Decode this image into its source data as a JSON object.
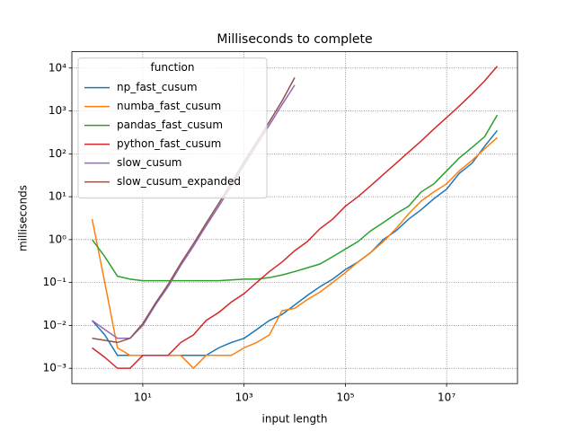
{
  "chart_data": {
    "type": "line",
    "title": "Milliseconds to complete",
    "xlabel": "input length",
    "ylabel": "milliseconds",
    "legend_title": "function",
    "legend": "upper left",
    "grid": true,
    "xscale": "log",
    "yscale": "log",
    "x": [
      1,
      1.778,
      3.162,
      5.623,
      10,
      17.78,
      31.62,
      56.23,
      100,
      177.8,
      316.2,
      562.3,
      1000,
      1778,
      3162,
      5623,
      10000,
      17780,
      31620,
      56230,
      100000,
      177800,
      316200,
      562300,
      1000000,
      1778000,
      3162000,
      5623000,
      10000000,
      17780000,
      31620000,
      56230000,
      100000000
    ],
    "series": [
      {
        "name": "np_fast_cusum",
        "color": "#1f77b4",
        "values": [
          0.013,
          0.006,
          0.002,
          0.002,
          0.002,
          0.002,
          0.002,
          0.002,
          0.002,
          0.002,
          0.003,
          0.004,
          0.005,
          0.008,
          0.013,
          0.018,
          0.03,
          0.05,
          0.08,
          0.12,
          0.2,
          0.3,
          0.5,
          1.0,
          1.6,
          3,
          5,
          9,
          15,
          35,
          60,
          150,
          350
        ]
      },
      {
        "name": "numba_fast_cusum",
        "color": "#ff7f0e",
        "values": [
          3,
          0.1,
          0.003,
          0.002,
          0.002,
          0.002,
          0.002,
          0.002,
          0.001,
          0.002,
          0.002,
          0.002,
          0.003,
          0.004,
          0.006,
          0.022,
          0.025,
          0.04,
          0.06,
          0.1,
          0.17,
          0.3,
          0.5,
          0.9,
          1.8,
          4,
          8,
          13,
          20,
          40,
          70,
          130,
          240
        ]
      },
      {
        "name": "pandas_fast_cusum",
        "color": "#2ca02c",
        "values": [
          1.0,
          0.4,
          0.14,
          0.12,
          0.11,
          0.11,
          0.11,
          0.11,
          0.11,
          0.11,
          0.11,
          0.115,
          0.12,
          0.12,
          0.13,
          0.15,
          0.18,
          0.22,
          0.27,
          0.4,
          0.6,
          0.9,
          1.6,
          2.5,
          4,
          6,
          13,
          20,
          40,
          80,
          140,
          250,
          800
        ]
      },
      {
        "name": "python_fast_cusum",
        "color": "#d62728",
        "values": [
          0.003,
          0.0018,
          0.001,
          0.001,
          0.002,
          0.002,
          0.002,
          0.004,
          0.006,
          0.013,
          0.02,
          0.035,
          0.055,
          0.1,
          0.18,
          0.3,
          0.55,
          0.9,
          1.8,
          3,
          6,
          10,
          18,
          33,
          60,
          110,
          200,
          380,
          700,
          1300,
          2500,
          5000,
          11000
        ]
      },
      {
        "name": "slow_cusum",
        "color": "#9467bd",
        "values": [
          0.013,
          0.008,
          0.005,
          0.005,
          0.01,
          0.03,
          0.08,
          0.25,
          0.7,
          2.1,
          6,
          18,
          55,
          160,
          470,
          1400,
          4000,
          null,
          null,
          null,
          null,
          null,
          null,
          null,
          null,
          null,
          null,
          null,
          null,
          null,
          null,
          null,
          null
        ]
      },
      {
        "name": "slow_cusum_expanded",
        "color": "#8c564b",
        "values": [
          0.005,
          0.0045,
          0.004,
          0.005,
          0.011,
          0.033,
          0.09,
          0.28,
          0.8,
          2.4,
          7,
          21,
          65,
          190,
          560,
          1700,
          6000,
          null,
          null,
          null,
          null,
          null,
          null,
          null,
          null,
          null,
          null,
          null,
          null,
          null,
          null,
          null,
          null
        ]
      }
    ],
    "xlim": [
      0.398,
      251000000
    ],
    "ylim": [
      0.00044,
      24000
    ],
    "xticks": [
      {
        "value": 10,
        "label": "10¹"
      },
      {
        "value": 1000,
        "label": "10³"
      },
      {
        "value": 100000,
        "label": "10⁵"
      },
      {
        "value": 10000000,
        "label": "10⁷"
      }
    ],
    "yticks": [
      {
        "value": 0.001,
        "label": "10⁻³"
      },
      {
        "value": 0.01,
        "label": "10⁻²"
      },
      {
        "value": 0.1,
        "label": "10⁻¹"
      },
      {
        "value": 1,
        "label": "10⁰"
      },
      {
        "value": 10,
        "label": "10¹"
      },
      {
        "value": 100,
        "label": "10²"
      },
      {
        "value": 1000,
        "label": "10³"
      },
      {
        "value": 10000,
        "label": "10⁴"
      }
    ]
  }
}
